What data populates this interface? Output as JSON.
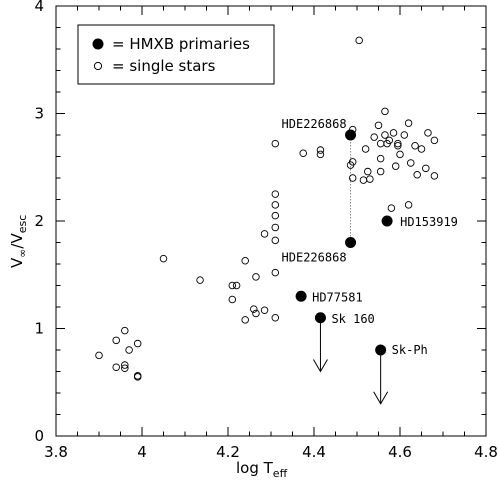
{
  "chart_data": {
    "type": "scatter",
    "title": "",
    "xlabel": {
      "main": "log T",
      "sub": "eff"
    },
    "ylabel": {
      "v": "V",
      "inf": "∞",
      "slash": "/",
      "v2": "V",
      "esc": "esc"
    },
    "xlim": [
      3.8,
      4.8
    ],
    "ylim": [
      0,
      4
    ],
    "x_ticks": [
      "3.8",
      "4",
      "4.2",
      "4.4",
      "4.6",
      "4.8"
    ],
    "y_ticks": [
      "0",
      "1",
      "2",
      "3",
      "4"
    ],
    "grid": false,
    "legend_position": "top-left",
    "legend": [
      {
        "marker": "filled-circle",
        "label": "= HMXB primaries"
      },
      {
        "marker": "open-circle",
        "label": "= single stars"
      }
    ],
    "series": [
      {
        "name": "HMXB primaries",
        "marker": "filled-circle",
        "points": [
          {
            "x": 4.485,
            "y": 2.8,
            "label": "HDE226868"
          },
          {
            "x": 4.485,
            "y": 1.8,
            "label": "HDE226868"
          },
          {
            "x": 4.57,
            "y": 2.0,
            "label": "HD153919"
          },
          {
            "x": 4.37,
            "y": 1.3,
            "label": "HD77581"
          },
          {
            "x": 4.415,
            "y": 1.1,
            "label": "Sk 160"
          },
          {
            "x": 4.555,
            "y": 0.8,
            "label": "Sk-Ph"
          }
        ]
      },
      {
        "name": "single stars",
        "marker": "open-circle",
        "points": [
          [
            3.9,
            0.75
          ],
          [
            3.94,
            0.64
          ],
          [
            3.94,
            0.89
          ],
          [
            3.96,
            0.98
          ],
          [
            3.96,
            0.66
          ],
          [
            3.96,
            0.63
          ],
          [
            3.97,
            0.8
          ],
          [
            3.99,
            0.86
          ],
          [
            3.99,
            0.56
          ],
          [
            3.99,
            0.55
          ],
          [
            4.05,
            1.65
          ],
          [
            4.135,
            1.45
          ],
          [
            4.21,
            1.27
          ],
          [
            4.21,
            1.4
          ],
          [
            4.22,
            1.4
          ],
          [
            4.24,
            1.08
          ],
          [
            4.24,
            1.63
          ],
          [
            4.26,
            1.18
          ],
          [
            4.265,
            1.14
          ],
          [
            4.265,
            1.48
          ],
          [
            4.285,
            1.17
          ],
          [
            4.285,
            1.88
          ],
          [
            4.31,
            1.1
          ],
          [
            4.31,
            1.52
          ],
          [
            4.31,
            1.82
          ],
          [
            4.31,
            1.94
          ],
          [
            4.31,
            2.05
          ],
          [
            4.31,
            2.15
          ],
          [
            4.31,
            2.25
          ],
          [
            4.31,
            2.72
          ],
          [
            4.375,
            2.63
          ],
          [
            4.415,
            2.62
          ],
          [
            4.415,
            2.66
          ],
          [
            4.485,
            2.52
          ],
          [
            4.49,
            2.55
          ],
          [
            4.49,
            2.4
          ],
          [
            4.49,
            2.85
          ],
          [
            4.505,
            3.68
          ],
          [
            4.515,
            2.38
          ],
          [
            4.52,
            2.67
          ],
          [
            4.525,
            2.46
          ],
          [
            4.53,
            2.39
          ],
          [
            4.54,
            2.78
          ],
          [
            4.55,
            2.89
          ],
          [
            4.555,
            2.72
          ],
          [
            4.555,
            2.58
          ],
          [
            4.555,
            2.46
          ],
          [
            4.565,
            3.02
          ],
          [
            4.565,
            2.8
          ],
          [
            4.57,
            2.72
          ],
          [
            4.575,
            2.75
          ],
          [
            4.58,
            2.12
          ],
          [
            4.585,
            2.82
          ],
          [
            4.59,
            2.51
          ],
          [
            4.595,
            2.72
          ],
          [
            4.595,
            2.7
          ],
          [
            4.6,
            2.62
          ],
          [
            4.61,
            2.8
          ],
          [
            4.62,
            2.91
          ],
          [
            4.62,
            2.15
          ],
          [
            4.625,
            2.54
          ],
          [
            4.635,
            2.7
          ],
          [
            4.64,
            2.43
          ],
          [
            4.65,
            2.67
          ],
          [
            4.66,
            2.49
          ],
          [
            4.665,
            2.82
          ],
          [
            4.68,
            2.75
          ],
          [
            4.68,
            2.42
          ]
        ]
      }
    ],
    "annotations": [
      {
        "type": "dotted-connector",
        "x": 4.485,
        "y_from": 1.8,
        "y_to": 2.8
      },
      {
        "type": "upper-limit-arrow",
        "x": 4.415,
        "y_from": 1.1,
        "y_to": 0.6
      },
      {
        "type": "upper-limit-arrow",
        "x": 4.555,
        "y_from": 0.8,
        "y_to": 0.3
      }
    ]
  }
}
